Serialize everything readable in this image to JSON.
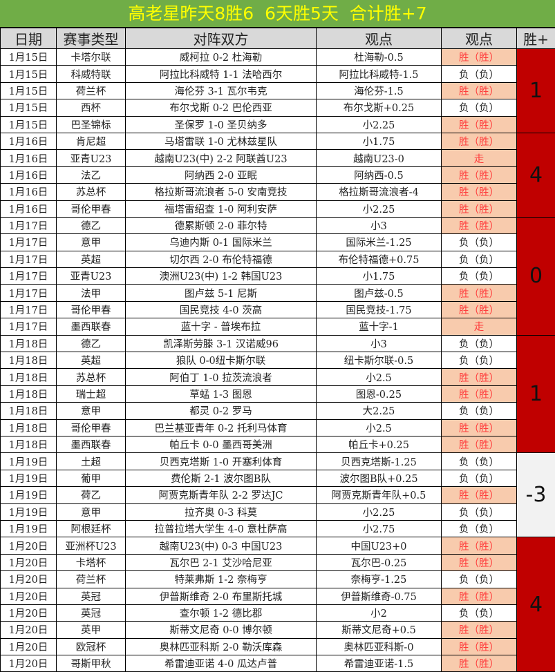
{
  "title": "高老星昨天8胜6  6天胜5天  合计胜+7",
  "colors": {
    "title_bg": "#70ad47",
    "title_text": "#ffff00",
    "header_bg": "#d9d9d9",
    "win_bg": "#f8cbad",
    "win_text": "#ff3b3b",
    "group_red": "#c00000",
    "group_gray": "#f2f2f2"
  },
  "headers": [
    "日期",
    "赛事类型",
    "对阵双方",
    "观点",
    "观点",
    "胜+"
  ],
  "groups": [
    {
      "total": "1",
      "color": "red",
      "rows": [
        {
          "date": "1月15日",
          "league": "卡塔尔联",
          "match": "威柯拉 0-2 杜海勒",
          "pick": "杜海勒-0.5",
          "result": "胜（胜）",
          "status": "win"
        },
        {
          "date": "1月15日",
          "league": "科威特联",
          "match": "阿拉比科威特 1-1 法哈西尔",
          "pick": "阿拉比科威特-1.5",
          "result": "负（负）",
          "status": "lose"
        },
        {
          "date": "1月15日",
          "league": "荷兰杯",
          "match": "海伦芬 3-1 瓦尔韦克",
          "pick": "海伦芬-1.5",
          "result": "胜（胜）",
          "status": "win"
        },
        {
          "date": "1月15日",
          "league": "西杯",
          "match": "布尔戈斯 0-2 巴伦西亚",
          "pick": "布尔戈斯+0.25",
          "result": "负（负）",
          "status": "lose"
        },
        {
          "date": "1月15日",
          "league": "巴圣锦标",
          "match": "圣保罗 1-0 圣贝纳多",
          "pick": "小2.25",
          "result": "胜（胜）",
          "status": "win"
        }
      ]
    },
    {
      "total": "4",
      "color": "red",
      "rows": [
        {
          "date": "1月16日",
          "league": "肯尼超",
          "match": "马塔雷联 1-0 尤林兹星队",
          "pick": "小1.75",
          "result": "胜（胜）",
          "status": "win"
        },
        {
          "date": "1月16日",
          "league": "亚青U23",
          "match": "越南U23(中) 2-2 阿联酋U23",
          "pick": "越南U23-0",
          "result": "走",
          "status": "win"
        },
        {
          "date": "1月16日",
          "league": "法乙",
          "match": "阿纳西 2-0 亚眠",
          "pick": "阿纳西-0.5",
          "result": "胜（胜）",
          "status": "win"
        },
        {
          "date": "1月16日",
          "league": "苏总杯",
          "match": "格拉斯哥流浪者 5-0 安南竞技",
          "pick": "格拉斯哥流浪者-4",
          "result": "胜（胜）",
          "status": "win"
        },
        {
          "date": "1月16日",
          "league": "哥伦甲春",
          "match": "福塔雷绍查 1-0 阿利安萨",
          "pick": "小2.25",
          "result": "胜（胜）",
          "status": "win"
        }
      ]
    },
    {
      "total": "0",
      "color": "red",
      "rows": [
        {
          "date": "1月17日",
          "league": "德乙",
          "match": "德累斯顿 2-0 菲尔特",
          "pick": "小3",
          "result": "胜（胜）",
          "status": "win"
        },
        {
          "date": "1月17日",
          "league": "意甲",
          "match": "乌迪内斯 0-1 国际米兰",
          "pick": "国际米兰-1.25",
          "result": "负（负）",
          "status": "lose"
        },
        {
          "date": "1月17日",
          "league": "英超",
          "match": "切尔西 2-0 布伦特福德",
          "pick": "布伦特福德+0.75",
          "result": "负（负）",
          "status": "lose"
        },
        {
          "date": "1月17日",
          "league": "亚青U23",
          "match": "澳洲U23(中) 1-2 韩国U23",
          "pick": "小1.75",
          "result": "负（负）",
          "status": "lose"
        },
        {
          "date": "1月17日",
          "league": "法甲",
          "match": "图卢兹 5-1 尼斯",
          "pick": "图卢兹-0.5",
          "result": "胜（胜）",
          "status": "win"
        },
        {
          "date": "1月17日",
          "league": "哥伦甲春",
          "match": "国民竞技 4-0 茨高",
          "pick": "国民竞技-1.75",
          "result": "胜（胜）",
          "status": "win"
        },
        {
          "date": "1月17日",
          "league": "墨西联春",
          "match": "蓝十字 - 普埃布拉",
          "pick": "蓝十字-1",
          "result": "走",
          "status": "win"
        }
      ]
    },
    {
      "total": "1",
      "color": "red",
      "rows": [
        {
          "date": "1月18日",
          "league": "德乙",
          "match": "凯泽斯劳滕 3-1 汉诺威96",
          "pick": "小3",
          "result": "负（负）",
          "status": "lose"
        },
        {
          "date": "1月18日",
          "league": "英超",
          "match": "狼队 0-0纽卡斯尔联",
          "pick": "纽卡斯尔联-0.5",
          "result": "负（负）",
          "status": "lose"
        },
        {
          "date": "1月18日",
          "league": "苏总杯",
          "match": "阿伯丁 1-0 拉茨流浪者",
          "pick": "小2.5",
          "result": "胜（胜）",
          "status": "win"
        },
        {
          "date": "1月18日",
          "league": "瑞士超",
          "match": "草蜢 1-3 图恩",
          "pick": "图恩-0.25",
          "result": "胜（胜）",
          "status": "win"
        },
        {
          "date": "1月18日",
          "league": "意甲",
          "match": "都灵 0-2 罗马",
          "pick": "大2.25",
          "result": "负（负）",
          "status": "lose"
        },
        {
          "date": "1月18日",
          "league": "哥伦甲春",
          "match": "巴兰基亚青年 0-2 托利马体育",
          "pick": "小2.5",
          "result": "胜（胜）",
          "status": "win"
        },
        {
          "date": "1月18日",
          "league": "墨西联春",
          "match": "帕丘卡 0-0 墨西哥美洲",
          "pick": "帕丘卡+0.25",
          "result": "胜（胜）",
          "status": "win"
        }
      ]
    },
    {
      "total": "-3",
      "color": "gray",
      "rows": [
        {
          "date": "1月19日",
          "league": "土超",
          "match": "贝西克塔斯 1-0 开塞利体育",
          "pick": "贝西克塔斯-1.25",
          "result": "负（负）",
          "status": "lose"
        },
        {
          "date": "1月19日",
          "league": "葡甲",
          "match": "费伦斯 2-1 波尔图B队",
          "pick": "波尔图B队+0.25",
          "result": "负（负）",
          "status": "lose"
        },
        {
          "date": "1月19日",
          "league": "荷乙",
          "match": "阿贾克斯青年队 2-2 罗达JC",
          "pick": "阿贾克斯青年队+0.5",
          "result": "胜（胜）",
          "status": "win"
        },
        {
          "date": "1月19日",
          "league": "意甲",
          "match": "拉齐奥 0-3 科莫",
          "pick": "小2.25",
          "result": "负（负）",
          "status": "lose"
        },
        {
          "date": "1月19日",
          "league": "阿根廷杯",
          "match": "拉普拉塔大学生 4-0 意杜萨高",
          "pick": "小2.75",
          "result": "负（负）",
          "status": "lose"
        }
      ]
    },
    {
      "total": "4",
      "color": "red",
      "rows": [
        {
          "date": "1月20日",
          "league": "亚洲杯U23",
          "match": "越南U23(中) 0-3 中国U23",
          "pick": "中国U23+0",
          "result": "胜（胜）",
          "status": "win"
        },
        {
          "date": "1月20日",
          "league": "卡塔杯",
          "match": "瓦尔巴 2-1 艾沙哈尼亚",
          "pick": "瓦尔巴-0.25",
          "result": "胜（胜）",
          "status": "win"
        },
        {
          "date": "1月20日",
          "league": "荷兰杯",
          "match": "特莱弗斯 1-2 奈梅亨",
          "pick": "奈梅亨-1.25",
          "result": "负（负）",
          "status": "lose"
        },
        {
          "date": "1月20日",
          "league": "英冠",
          "match": "伊普斯维奇 2-0 布里斯托城",
          "pick": "伊普斯维奇-0.75",
          "result": "胜（胜）",
          "status": "win"
        },
        {
          "date": "1月20日",
          "league": "英冠",
          "match": "查尔顿 1-2 德比郡",
          "pick": "小2",
          "result": "负（负）",
          "status": "lose"
        },
        {
          "date": "1月20日",
          "league": "英甲",
          "match": "斯蒂文尼奇 0-0 博尔顿",
          "pick": "斯蒂文尼奇+0.5",
          "result": "胜（胜）",
          "status": "win"
        },
        {
          "date": "1月20日",
          "league": "欧冠杯",
          "match": "奥林匹亚科斯 2-0 勒沃库森",
          "pick": "奥林匹亚科斯-0",
          "result": "胜（胜）",
          "status": "win"
        },
        {
          "date": "1月20日",
          "league": "哥斯甲秋",
          "match": "希雷迪亚诺 4-0 瓜达卢普",
          "pick": "希雷迪亚诺-1.5",
          "result": "胜（胜）",
          "status": "win"
        }
      ]
    }
  ]
}
